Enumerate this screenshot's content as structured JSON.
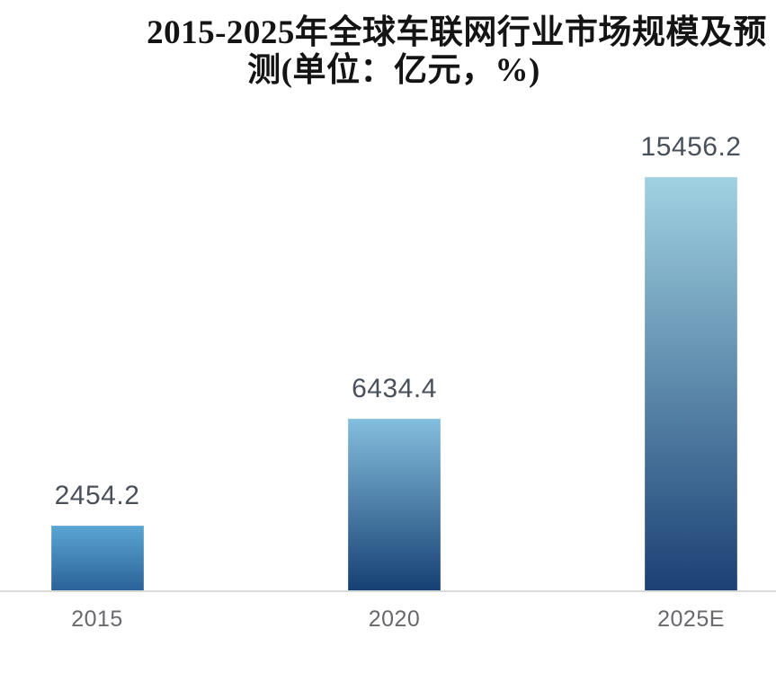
{
  "chart_data": {
    "type": "bar",
    "title_line1": "2015-2025年全球车联网行业市场规模及预",
    "title_line2": "测(单位：亿元，%)",
    "title_full": "2015-2025年全球车联网行业市场规模及预测(单位：亿元，%)",
    "categories": [
      "2015",
      "2020",
      "2025E"
    ],
    "values": [
      2454.2,
      6434.4,
      15456.2
    ],
    "value_labels": [
      "2454.2",
      "6434.4",
      "15456.2"
    ],
    "ylim": [
      0,
      15456.2
    ],
    "grid": false,
    "legend": false,
    "bar_gradients": [
      {
        "top": "#5aa6d3",
        "bottom": "#2b6198"
      },
      {
        "top": "#84bedd",
        "bottom": "#153f72"
      },
      {
        "top": "#a0d2e2",
        "bottom": "#1b4074"
      }
    ],
    "colors": {
      "title": "#141414",
      "value_label": "#4a505a",
      "axis_label": "#68696d",
      "axis_line": "#d8dadc",
      "background": "#ffffff"
    }
  }
}
